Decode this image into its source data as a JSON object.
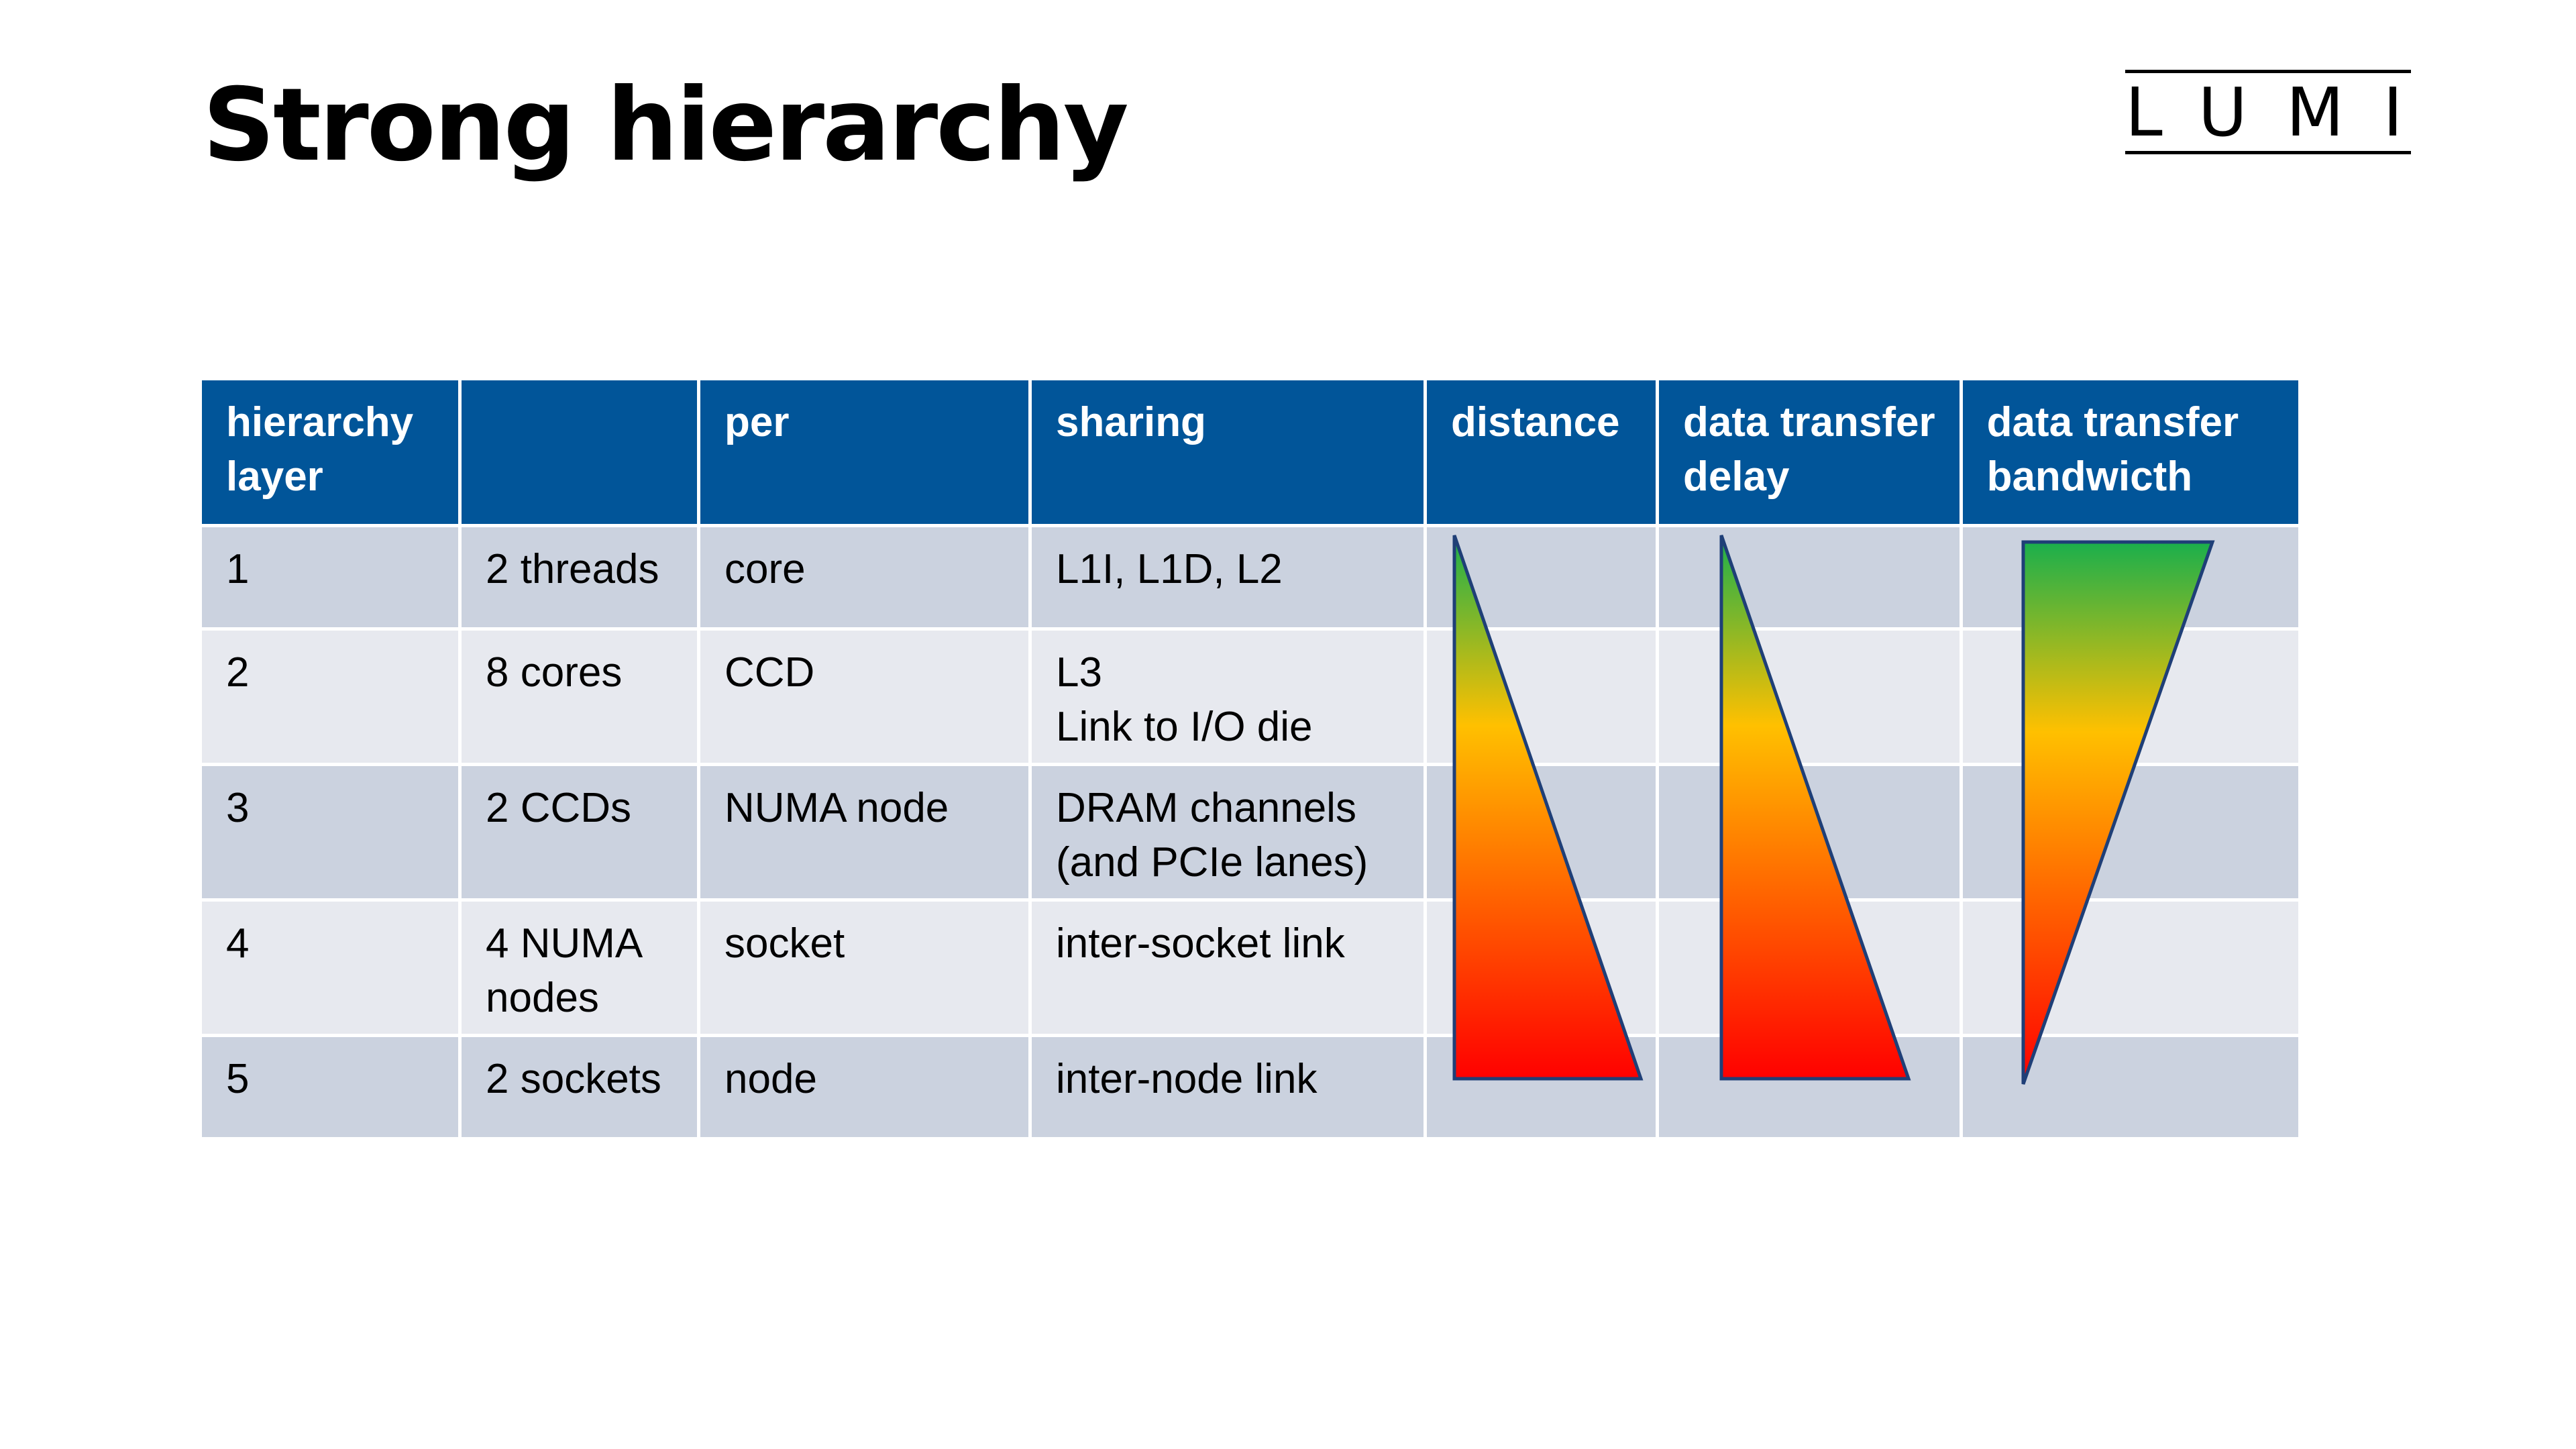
{
  "slide": {
    "title": "Strong hierarchy",
    "logo_text": "LUMI"
  },
  "table": {
    "headers": [
      [
        "hierarchy",
        "layer"
      ],
      [],
      [
        "per"
      ],
      [
        "sharing"
      ],
      [
        "distance"
      ],
      [
        "data transfer",
        "delay"
      ],
      [
        "data transfer",
        "bandwicth"
      ]
    ],
    "rows": [
      [
        [
          "1"
        ],
        [
          "2 threads"
        ],
        [
          "core"
        ],
        [
          "L1I, L1D, L2"
        ]
      ],
      [
        [
          "2"
        ],
        [
          "8 cores"
        ],
        [
          "CCD"
        ],
        [
          "L3",
          "Link to I/O die"
        ]
      ],
      [
        [
          "3"
        ],
        [
          "2 CCDs"
        ],
        [
          "NUMA node"
        ],
        [
          "DRAM channels",
          "(and PCIe lanes)"
        ]
      ],
      [
        [
          "4"
        ],
        [
          "4 NUMA",
          "nodes"
        ],
        [
          "socket"
        ],
        [
          "inter-socket link"
        ]
      ],
      [
        [
          "5"
        ],
        [
          "2 sockets"
        ],
        [
          "node"
        ],
        [
          "inter-node link"
        ]
      ]
    ]
  },
  "gradient_triangles": [
    {
      "name": "distance",
      "direction": "increasing-downward"
    },
    {
      "name": "data transfer delay",
      "direction": "increasing-downward"
    },
    {
      "name": "data transfer bandwicth",
      "direction": "decreasing-downward"
    }
  ],
  "colors": {
    "header_bg": "#015599",
    "row_odd_bg": "#cbd2df",
    "row_even_bg": "#e7e9ef",
    "gradient_top": "#1aaf4c",
    "gradient_mid": "#ffc000",
    "gradient_bottom": "#ff0000",
    "triangle_outline": "#1f3f77"
  }
}
